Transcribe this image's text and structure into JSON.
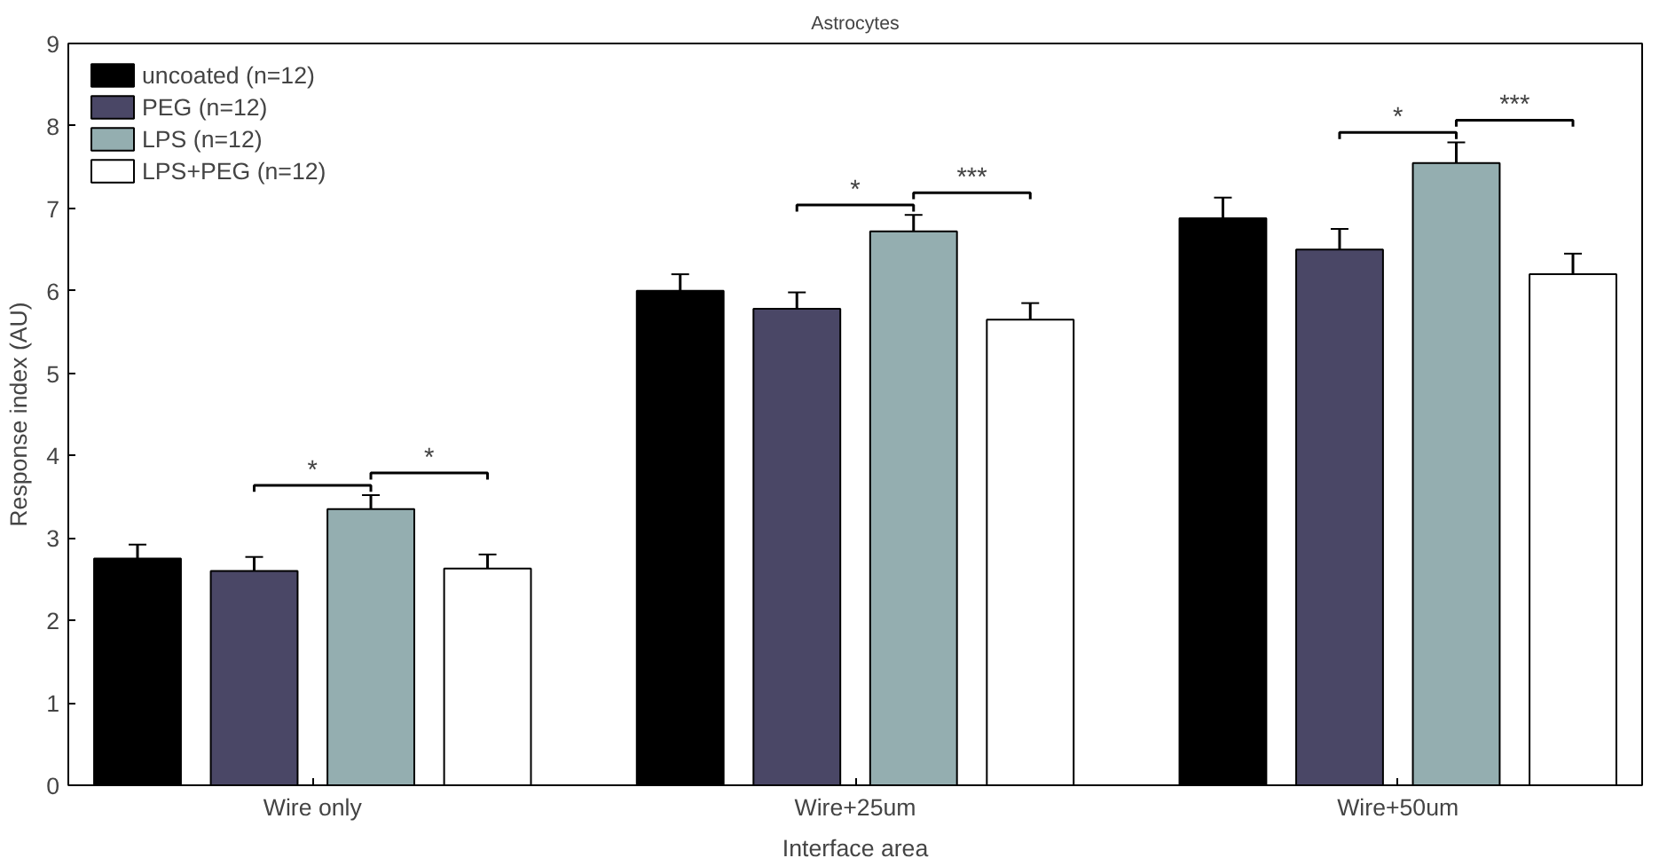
{
  "chart_data": {
    "type": "bar",
    "title": "Astrocytes",
    "xlabel": "Interface area",
    "ylabel": "Response index (AU)",
    "categories": [
      "Wire only",
      "Wire+25um",
      "Wire+50um"
    ],
    "series": [
      {
        "name": "uncoated (n=12)",
        "color": "#000000",
        "values": [
          2.75,
          6.0,
          6.88
        ],
        "errors": [
          0.17,
          0.2,
          0.25
        ]
      },
      {
        "name": "PEG (n=12)",
        "color": "#4a4766",
        "values": [
          2.6,
          5.78,
          6.5
        ],
        "errors": [
          0.17,
          0.2,
          0.25
        ]
      },
      {
        "name": "LPS (n=12)",
        "color": "#94aeb0",
        "values": [
          3.35,
          6.72,
          7.55
        ],
        "errors": [
          0.17,
          0.2,
          0.25
        ]
      },
      {
        "name": "LPS+PEG (n=12)",
        "color": "#ffffff",
        "values": [
          2.63,
          5.65,
          6.2
        ],
        "errors": [
          0.17,
          0.2,
          0.25
        ]
      }
    ],
    "annotations": [
      "*",
      "*",
      "*",
      "***",
      "*",
      "***"
    ],
    "ylim": [
      0,
      9
    ],
    "yticks": [
      0,
      1,
      2,
      3,
      4,
      5,
      6,
      7,
      8,
      9
    ],
    "grid": false,
    "legend": "top left"
  }
}
